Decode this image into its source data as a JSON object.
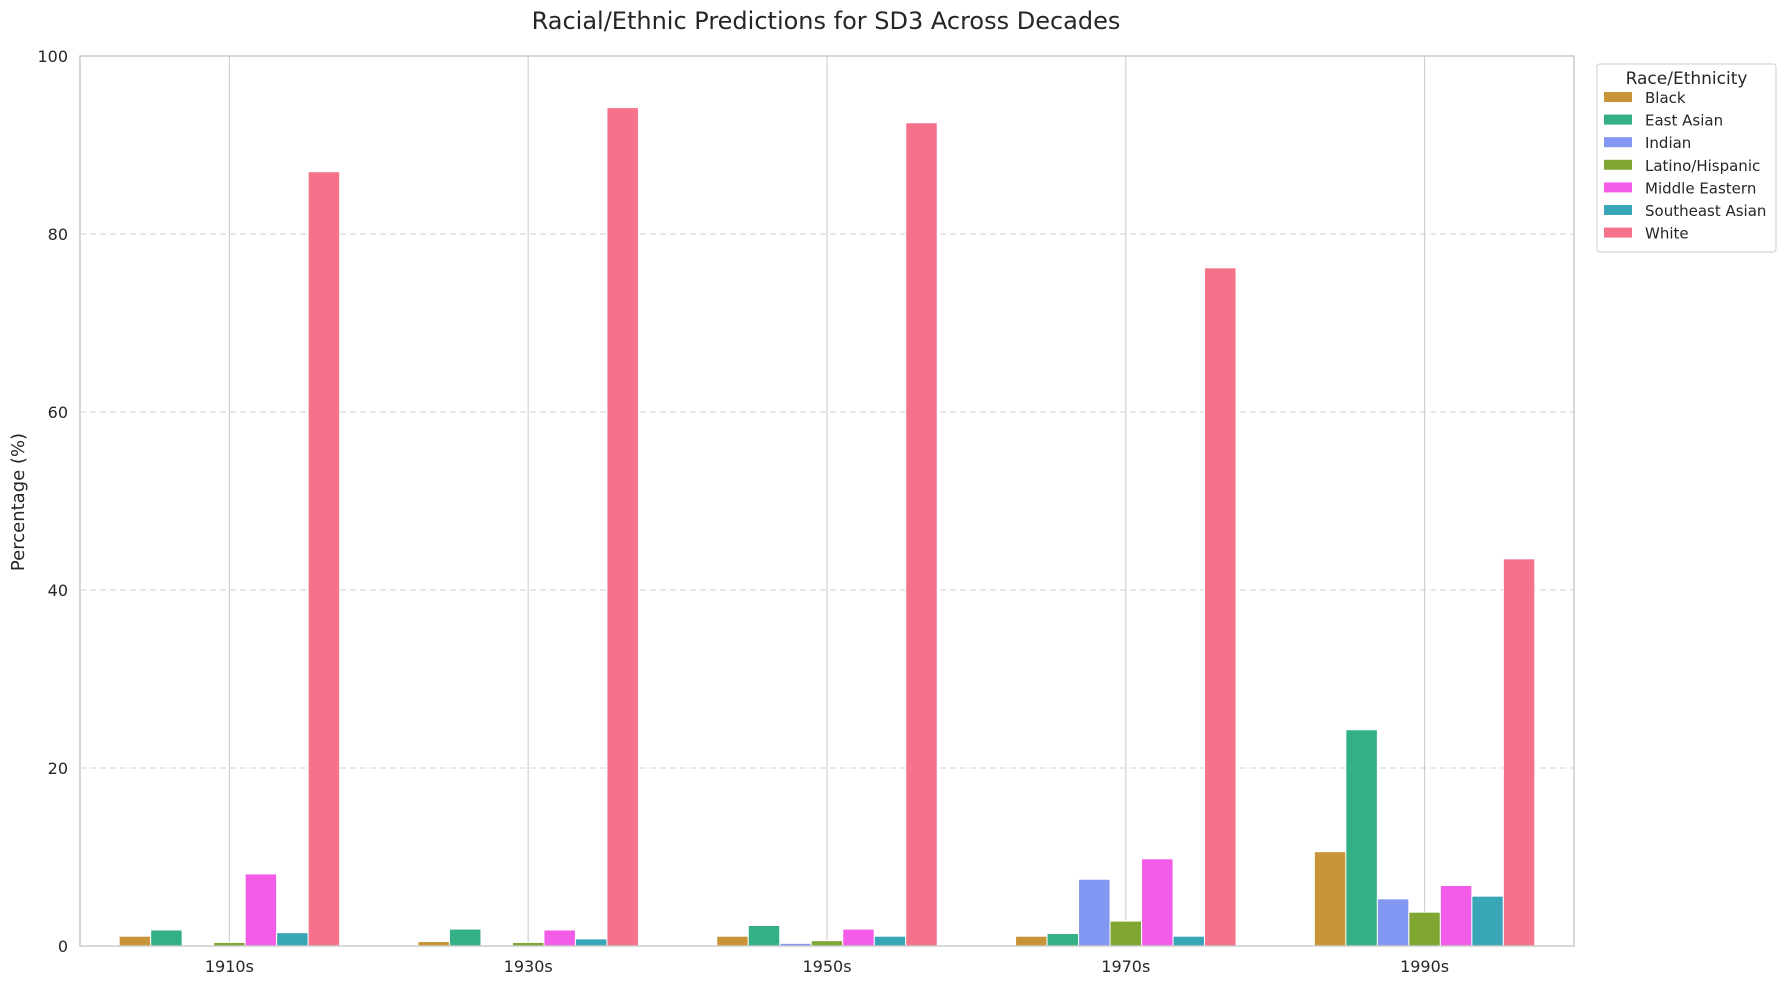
{
  "chart_data": {
    "type": "bar",
    "title": "Racial/Ethnic Predictions for SD3 Across Decades",
    "xlabel": "",
    "ylabel": "Percentage (%)",
    "ylim": [
      0,
      100
    ],
    "yticks": [
      "0",
      "20",
      "40",
      "60",
      "80",
      "100"
    ],
    "grid": "horizontal dashed",
    "legend_title": "Race/Ethnicity",
    "legend_position": "outside top-right",
    "categories": [
      "1910s",
      "1930s",
      "1950s",
      "1970s",
      "1990s"
    ],
    "series": [
      {
        "name": "Black",
        "color": "#c89437",
        "values": [
          1.1,
          0.5,
          1.1,
          1.1,
          10.6
        ]
      },
      {
        "name": "East Asian",
        "color": "#33b085",
        "values": [
          1.8,
          1.9,
          2.3,
          1.4,
          24.3
        ]
      },
      {
        "name": "Indian",
        "color": "#8297f2",
        "values": [
          0.0,
          0.0,
          0.3,
          7.5,
          5.3
        ]
      },
      {
        "name": "Latino/Hispanic",
        "color": "#80a632",
        "values": [
          0.4,
          0.4,
          0.6,
          2.8,
          3.8
        ]
      },
      {
        "name": "Middle Eastern",
        "color": "#f35ce6",
        "values": [
          8.1,
          1.8,
          1.9,
          9.8,
          6.8
        ]
      },
      {
        "name": "Southeast Asian",
        "color": "#39a6b7",
        "values": [
          1.5,
          0.8,
          1.1,
          1.1,
          5.6
        ]
      },
      {
        "name": "White",
        "color": "#f6718a",
        "values": [
          87.0,
          94.2,
          92.5,
          76.2,
          43.5
        ]
      }
    ]
  }
}
